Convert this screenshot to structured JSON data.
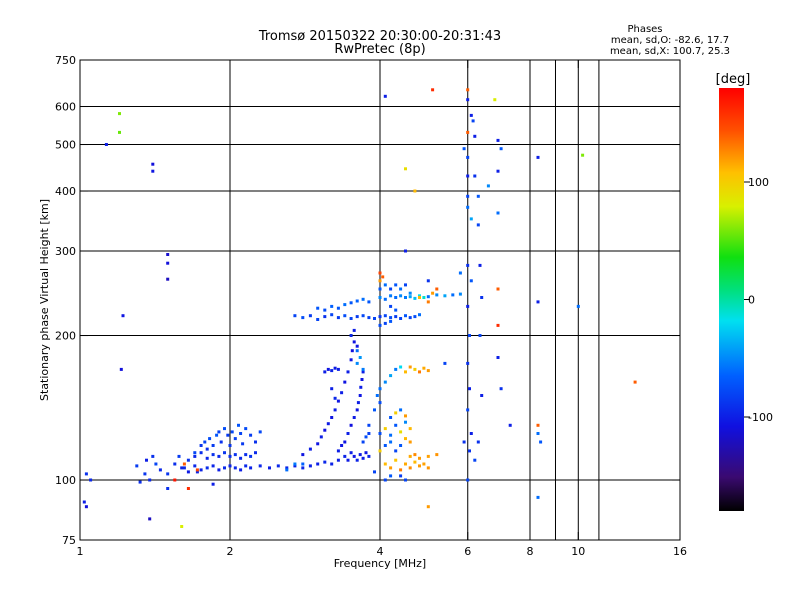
{
  "chart_data": {
    "type": "scatter",
    "title": "Tromsø 20150322 20:30:00-20:31:43",
    "subtitle": "RwPretec (8p)",
    "xlabel": "Frequency [MHz]",
    "ylabel": "Stationary phase Virtual Height [km]",
    "x_scale": "log",
    "y_scale": "log",
    "xlim": [
      1,
      16
    ],
    "ylim": [
      75,
      750
    ],
    "x_ticks": [
      1,
      2,
      4,
      6,
      8,
      10,
      16
    ],
    "y_ticks": [
      75,
      100,
      200,
      300,
      400,
      500,
      600,
      750
    ],
    "x_tick_labels": [
      "1",
      "2",
      "4",
      "6",
      "8",
      "10",
      "16"
    ],
    "y_tick_labels": [
      "75",
      "100",
      "200",
      "300",
      "400",
      "500",
      "600",
      "750"
    ],
    "x_grid": [
      2,
      4,
      6,
      8,
      9,
      10,
      11
    ],
    "y_grid": [
      100,
      200,
      300,
      400,
      500,
      600
    ],
    "grid": true,
    "colorbar": {
      "label": "[deg]",
      "range": [
        -180,
        180
      ],
      "ticks": [
        100,
        0,
        -100
      ],
      "tick_labels": [
        "100",
        "0",
        "-100"
      ]
    },
    "stats": {
      "heading": "Phases",
      "line1": "mean, sd,O: -82.6, 17.7",
      "line2": "mean, sd,X: 100.7, 25.3"
    },
    "points": [
      [
        1.03,
        103,
        -90
      ],
      [
        1.05,
        100,
        -95
      ],
      [
        1.02,
        90,
        -100
      ],
      [
        1.03,
        88,
        -110
      ],
      [
        1.13,
        500,
        -100
      ],
      [
        1.2,
        580,
        60
      ],
      [
        1.2,
        530,
        55
      ],
      [
        1.22,
        220,
        -105
      ],
      [
        1.21,
        170,
        -110
      ],
      [
        1.4,
        455,
        -110
      ],
      [
        1.4,
        440,
        -105
      ],
      [
        1.5,
        295,
        -115
      ],
      [
        1.5,
        283,
        -110
      ],
      [
        1.5,
        262,
        -120
      ],
      [
        1.38,
        83,
        -120
      ],
      [
        1.6,
        80,
        80
      ],
      [
        1.38,
        100,
        -95
      ],
      [
        1.35,
        103,
        -88
      ],
      [
        1.32,
        99,
        -92
      ],
      [
        1.3,
        107,
        -85
      ],
      [
        1.36,
        110,
        -100
      ],
      [
        1.4,
        112,
        -90
      ],
      [
        1.42,
        108,
        -80
      ],
      [
        1.45,
        105,
        -95
      ],
      [
        1.5,
        103,
        -88
      ],
      [
        1.55,
        108,
        -92
      ],
      [
        1.58,
        112,
        -85
      ],
      [
        1.62,
        106,
        -95
      ],
      [
        1.65,
        110,
        -90
      ],
      [
        1.7,
        114,
        -78
      ],
      [
        1.72,
        104,
        -96
      ],
      [
        1.75,
        118,
        -88
      ],
      [
        1.78,
        120,
        -80
      ],
      [
        1.8,
        116,
        -92
      ],
      [
        1.82,
        122,
        -75
      ],
      [
        1.85,
        118,
        -85
      ],
      [
        1.88,
        124,
        -70
      ],
      [
        1.9,
        126,
        -82
      ],
      [
        1.92,
        120,
        -90
      ],
      [
        1.95,
        128,
        -75
      ],
      [
        1.98,
        124,
        -85
      ],
      [
        2.0,
        118,
        -88
      ],
      [
        2.02,
        126,
        -78
      ],
      [
        2.05,
        122,
        -82
      ],
      [
        2.08,
        130,
        -72
      ],
      [
        2.1,
        125,
        -80
      ],
      [
        2.12,
        119,
        -86
      ],
      [
        2.15,
        128,
        -76
      ],
      [
        2.2,
        124,
        -84
      ],
      [
        2.25,
        120,
        -90
      ],
      [
        2.3,
        126,
        -78
      ],
      [
        1.7,
        112,
        -95
      ],
      [
        1.75,
        114,
        -92
      ],
      [
        1.8,
        111,
        -96
      ],
      [
        1.85,
        113,
        -90
      ],
      [
        1.9,
        112,
        -94
      ],
      [
        1.95,
        114,
        -88
      ],
      [
        2.0,
        112,
        -92
      ],
      [
        2.05,
        113,
        -90
      ],
      [
        2.1,
        111,
        -95
      ],
      [
        2.15,
        113,
        -92
      ],
      [
        2.2,
        112,
        -88
      ],
      [
        2.25,
        114,
        -94
      ],
      [
        1.6,
        106,
        -98
      ],
      [
        1.65,
        104,
        -102
      ],
      [
        1.7,
        107,
        -95
      ],
      [
        1.75,
        105,
        -98
      ],
      [
        1.8,
        106,
        -92
      ],
      [
        1.85,
        107,
        -96
      ],
      [
        1.9,
        105,
        -100
      ],
      [
        1.95,
        106,
        -94
      ],
      [
        2.0,
        107,
        -98
      ],
      [
        2.05,
        106,
        -95
      ],
      [
        2.1,
        105,
        -100
      ],
      [
        2.15,
        107,
        -94
      ],
      [
        2.2,
        106,
        -98
      ],
      [
        2.3,
        107,
        -96
      ],
      [
        2.4,
        106,
        -100
      ],
      [
        2.5,
        107,
        -95
      ],
      [
        2.6,
        106,
        -98
      ],
      [
        2.7,
        107,
        -100
      ],
      [
        2.8,
        106,
        -95
      ],
      [
        2.9,
        107,
        -98
      ],
      [
        3.0,
        108,
        -100
      ],
      [
        3.1,
        109,
        -95
      ],
      [
        3.2,
        108,
        -98
      ],
      [
        3.3,
        110,
        -100
      ],
      [
        1.55,
        100,
        170
      ],
      [
        1.62,
        108,
        140
      ],
      [
        1.72,
        105,
        150
      ],
      [
        1.65,
        96,
        160
      ],
      [
        1.85,
        98,
        -100
      ],
      [
        1.5,
        96,
        -90
      ],
      [
        2.8,
        113,
        -105
      ],
      [
        2.9,
        116,
        -100
      ],
      [
        3.0,
        119,
        -105
      ],
      [
        3.05,
        123,
        -100
      ],
      [
        3.1,
        127,
        -108
      ],
      [
        3.15,
        131,
        -102
      ],
      [
        3.2,
        135,
        -106
      ],
      [
        3.25,
        140,
        -100
      ],
      [
        3.3,
        146,
        -104
      ],
      [
        3.35,
        152,
        -100
      ],
      [
        3.4,
        160,
        -106
      ],
      [
        3.45,
        168,
        -100
      ],
      [
        3.5,
        178,
        -104
      ],
      [
        3.52,
        186,
        -110
      ],
      [
        3.55,
        194,
        -106
      ],
      [
        3.4,
        120,
        -105
      ],
      [
        3.45,
        125,
        -100
      ],
      [
        3.5,
        130,
        -108
      ],
      [
        3.55,
        135,
        -102
      ],
      [
        3.6,
        140,
        -106
      ],
      [
        3.62,
        145,
        -100
      ],
      [
        3.65,
        150,
        -104
      ],
      [
        3.66,
        156,
        -100
      ],
      [
        3.68,
        162,
        -106
      ],
      [
        3.7,
        168,
        -100
      ],
      [
        3.3,
        115,
        -100
      ],
      [
        3.35,
        118,
        -104
      ],
      [
        3.4,
        112,
        -98
      ],
      [
        3.45,
        110,
        -102
      ],
      [
        3.5,
        114,
        -100
      ],
      [
        3.55,
        112,
        -105
      ],
      [
        3.6,
        110,
        -98
      ],
      [
        3.65,
        113,
        -102
      ],
      [
        3.7,
        111,
        -100
      ],
      [
        3.75,
        114,
        -104
      ],
      [
        3.8,
        112,
        -98
      ],
      [
        3.5,
        200,
        -95
      ],
      [
        3.55,
        205,
        -100
      ],
      [
        3.6,
        190,
        -105
      ],
      [
        3.1,
        168,
        -100
      ],
      [
        3.15,
        170,
        -105
      ],
      [
        3.2,
        169,
        -98
      ],
      [
        3.25,
        171,
        -102
      ],
      [
        3.3,
        170,
        -100
      ],
      [
        3.7,
        120,
        -80
      ],
      [
        3.75,
        123,
        -75
      ],
      [
        3.8,
        125,
        -82
      ],
      [
        3.2,
        155,
        -100
      ],
      [
        3.25,
        148,
        -95
      ],
      [
        2.6,
        105,
        -60
      ],
      [
        2.7,
        108,
        -55
      ],
      [
        2.8,
        108,
        -65
      ],
      [
        3.6,
        175,
        -50
      ],
      [
        3.65,
        180,
        -45
      ],
      [
        3.7,
        170,
        -55
      ],
      [
        3.6,
        186,
        -60
      ],
      [
        2.7,
        220,
        -80
      ],
      [
        2.8,
        218,
        -75
      ],
      [
        2.9,
        220,
        -85
      ],
      [
        3.0,
        216,
        -80
      ],
      [
        3.1,
        219,
        -90
      ],
      [
        3.2,
        221,
        -80
      ],
      [
        3.3,
        218,
        -85
      ],
      [
        3.4,
        220,
        -75
      ],
      [
        3.5,
        217,
        -80
      ],
      [
        3.6,
        219,
        -85
      ],
      [
        3.7,
        220,
        -78
      ],
      [
        3.8,
        218,
        -82
      ],
      [
        3.9,
        217,
        -80
      ],
      [
        4.0,
        219,
        -88
      ],
      [
        4.1,
        220,
        -80
      ],
      [
        4.2,
        218,
        -75
      ],
      [
        4.3,
        219,
        -85
      ],
      [
        4.4,
        217,
        -80
      ],
      [
        4.5,
        220,
        -70
      ],
      [
        4.6,
        218,
        -80
      ],
      [
        4.7,
        219,
        -75
      ],
      [
        4.8,
        221,
        -60
      ],
      [
        3.0,
        228,
        -70
      ],
      [
        3.1,
        226,
        -75
      ],
      [
        3.2,
        230,
        -65
      ],
      [
        3.3,
        228,
        -70
      ],
      [
        3.4,
        232,
        -60
      ],
      [
        3.5,
        234,
        -70
      ],
      [
        3.6,
        236,
        -65
      ],
      [
        3.7,
        238,
        -60
      ],
      [
        3.8,
        235,
        -70
      ],
      [
        4.0,
        240,
        -50
      ],
      [
        4.1,
        238,
        -60
      ],
      [
        4.2,
        242,
        -55
      ],
      [
        4.3,
        240,
        -60
      ],
      [
        4.4,
        242,
        -50
      ],
      [
        4.5,
        240,
        -55
      ],
      [
        4.6,
        241,
        -40
      ],
      [
        4.7,
        239,
        -30
      ],
      [
        4.8,
        242,
        -20
      ],
      [
        4.9,
        240,
        -10
      ],
      [
        5.0,
        241,
        -60
      ],
      [
        5.2,
        243,
        -50
      ],
      [
        5.4,
        242,
        -40
      ],
      [
        5.6,
        243,
        -60
      ],
      [
        5.8,
        244,
        -50
      ],
      [
        4.0,
        210,
        -75
      ],
      [
        4.1,
        212,
        -80
      ],
      [
        4.2,
        214,
        -70
      ],
      [
        4.0,
        250,
        -70
      ],
      [
        4.1,
        255,
        -60
      ],
      [
        4.0,
        260,
        120
      ],
      [
        4.05,
        265,
        140
      ],
      [
        4.0,
        270,
        150
      ],
      [
        4.2,
        250,
        -80
      ],
      [
        4.3,
        255,
        -70
      ],
      [
        4.4,
        250,
        -60
      ],
      [
        4.5,
        255,
        -80
      ],
      [
        4.6,
        245,
        -50
      ],
      [
        4.8,
        240,
        110
      ],
      [
        5.0,
        235,
        130
      ],
      [
        5.1,
        245,
        120
      ],
      [
        4.2,
        230,
        -80
      ],
      [
        4.3,
        226,
        -70
      ],
      [
        4.5,
        300,
        -100
      ],
      [
        5.0,
        260,
        -90
      ],
      [
        5.2,
        250,
        140
      ],
      [
        5.8,
        270,
        -60
      ],
      [
        4.0,
        155,
        -60
      ],
      [
        4.1,
        160,
        -50
      ],
      [
        4.2,
        165,
        -40
      ],
      [
        4.3,
        170,
        -55
      ],
      [
        4.4,
        172,
        -20
      ],
      [
        4.5,
        168,
        110
      ],
      [
        4.6,
        172,
        120
      ],
      [
        4.7,
        170,
        100
      ],
      [
        4.8,
        168,
        130
      ],
      [
        4.9,
        171,
        115
      ],
      [
        5.0,
        169,
        120
      ],
      [
        4.1,
        108,
        110
      ],
      [
        4.2,
        106,
        120
      ],
      [
        4.3,
        110,
        105
      ],
      [
        4.4,
        105,
        130
      ],
      [
        4.5,
        108,
        115
      ],
      [
        4.6,
        106,
        125
      ],
      [
        4.7,
        109,
        110
      ],
      [
        4.8,
        107,
        120
      ],
      [
        4.9,
        108,
        118
      ],
      [
        5.0,
        106,
        122
      ],
      [
        4.0,
        115,
        100
      ],
      [
        4.1,
        118,
        -70
      ],
      [
        4.2,
        120,
        -60
      ],
      [
        4.3,
        115,
        -80
      ],
      [
        4.4,
        118,
        -70
      ],
      [
        4.5,
        122,
        110
      ],
      [
        4.6,
        120,
        120
      ],
      [
        4.0,
        125,
        -75
      ],
      [
        4.1,
        128,
        100
      ],
      [
        4.2,
        124,
        -60
      ],
      [
        4.3,
        130,
        -70
      ],
      [
        4.4,
        126,
        90
      ],
      [
        4.5,
        132,
        -50
      ],
      [
        4.6,
        128,
        110
      ],
      [
        4.2,
        135,
        -70
      ],
      [
        4.3,
        138,
        100
      ],
      [
        4.4,
        140,
        -60
      ],
      [
        4.5,
        136,
        120
      ],
      [
        4.1,
        100,
        -80
      ],
      [
        4.2,
        102,
        -70
      ],
      [
        3.9,
        104,
        -80
      ],
      [
        3.8,
        130,
        -80
      ],
      [
        3.9,
        140,
        -70
      ],
      [
        3.95,
        150,
        -60
      ],
      [
        4.0,
        145,
        -75
      ],
      [
        4.6,
        112,
        115
      ],
      [
        4.7,
        113,
        125
      ],
      [
        4.8,
        111,
        120
      ],
      [
        5.0,
        112,
        118
      ],
      [
        5.2,
        113,
        122
      ],
      [
        4.4,
        102,
        -85
      ],
      [
        4.5,
        100,
        -80
      ],
      [
        6.0,
        620,
        -100
      ],
      [
        6.0,
        530,
        140
      ],
      [
        6.0,
        470,
        -80
      ],
      [
        6.0,
        430,
        -100
      ],
      [
        6.0,
        390,
        -80
      ],
      [
        6.0,
        370,
        -60
      ],
      [
        6.1,
        350,
        -40
      ],
      [
        6.0,
        280,
        -90
      ],
      [
        6.1,
        260,
        -70
      ],
      [
        6.0,
        230,
        -100
      ],
      [
        6.05,
        200,
        -80
      ],
      [
        6.0,
        175,
        -90
      ],
      [
        6.05,
        155,
        -100
      ],
      [
        6.0,
        140,
        -80
      ],
      [
        6.1,
        125,
        -100
      ],
      [
        6.05,
        115,
        -90
      ],
      [
        6.0,
        100,
        -80
      ],
      [
        6.1,
        575,
        -100
      ],
      [
        6.15,
        560,
        -80
      ],
      [
        6.2,
        520,
        -100
      ],
      [
        6.2,
        430,
        -90
      ],
      [
        6.3,
        390,
        -70
      ],
      [
        6.3,
        340,
        -80
      ],
      [
        6.35,
        280,
        -100
      ],
      [
        6.4,
        240,
        -90
      ],
      [
        6.35,
        200,
        -80
      ],
      [
        6.4,
        150,
        -100
      ],
      [
        6.3,
        120,
        -90
      ],
      [
        6.2,
        110,
        -80
      ],
      [
        5.9,
        490,
        -70
      ],
      [
        5.9,
        120,
        -90
      ],
      [
        6.0,
        650,
        140
      ],
      [
        6.6,
        410,
        -50
      ],
      [
        6.9,
        510,
        -100
      ],
      [
        6.9,
        440,
        -100
      ],
      [
        6.9,
        360,
        -60
      ],
      [
        6.9,
        250,
        140
      ],
      [
        6.9,
        210,
        160
      ],
      [
        6.9,
        180,
        -100
      ],
      [
        7.0,
        155,
        -90
      ],
      [
        7.3,
        130,
        -100
      ],
      [
        6.8,
        620,
        80
      ],
      [
        7.0,
        490,
        -70
      ],
      [
        8.3,
        470,
        -100
      ],
      [
        8.3,
        235,
        -100
      ],
      [
        8.3,
        130,
        140
      ],
      [
        8.3,
        125,
        -60
      ],
      [
        8.3,
        92,
        -60
      ],
      [
        8.4,
        120,
        -70
      ],
      [
        10.0,
        230,
        -60
      ],
      [
        10.2,
        475,
        60
      ],
      [
        13.0,
        160,
        140
      ],
      [
        5.1,
        650,
        160
      ],
      [
        5.0,
        88,
        120
      ],
      [
        4.7,
        400,
        110
      ],
      [
        5.4,
        175,
        -80
      ],
      [
        4.1,
        630,
        -100
      ],
      [
        4.5,
        445,
        90
      ]
    ]
  }
}
